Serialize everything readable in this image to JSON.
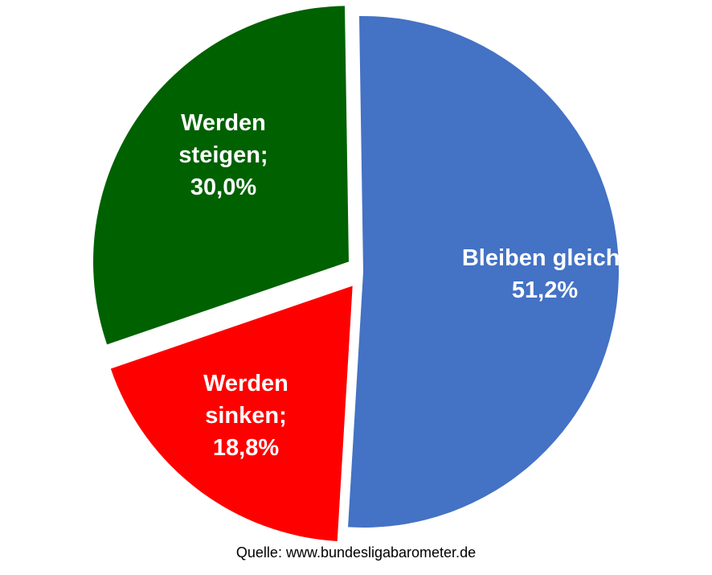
{
  "chart_data": {
    "type": "pie",
    "title": "",
    "slices": [
      {
        "label": "Bleiben gleich",
        "value": 51.2,
        "display": "51,2%",
        "color": "#4472C4"
      },
      {
        "label": "Werden sinken",
        "value": 18.8,
        "display": "18,8%",
        "color": "#FF0000"
      },
      {
        "label": "Werden steigen",
        "value": 30.0,
        "display": "30,0%",
        "color": "#006100"
      }
    ],
    "label_lines": [
      [
        "Bleiben gleich;",
        "51,2%"
      ],
      [
        "Werden",
        "sinken;",
        "18,8%"
      ],
      [
        "Werden",
        "steigen;",
        "30,0%"
      ]
    ],
    "source": "Quelle: www.bundesligabarometer.de"
  }
}
